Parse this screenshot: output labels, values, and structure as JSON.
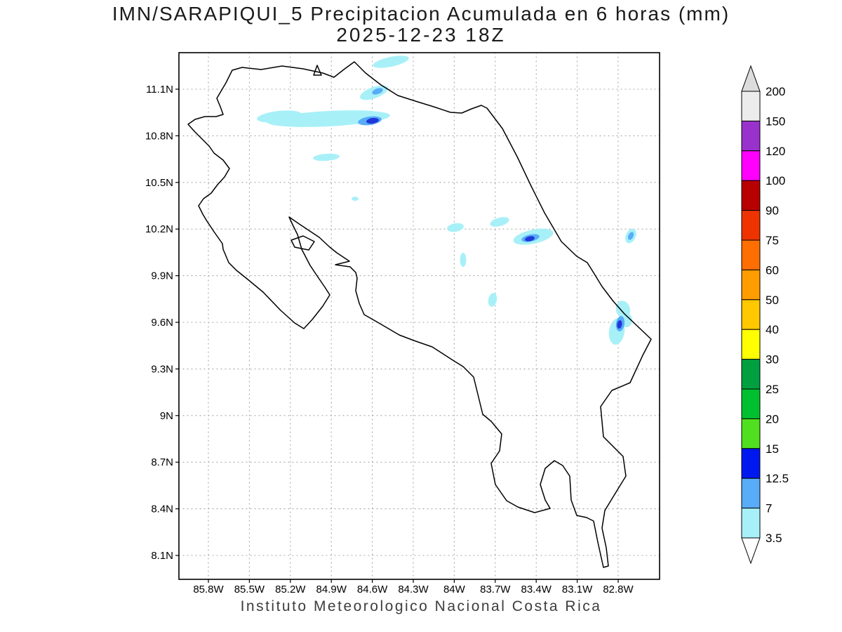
{
  "title": {
    "line1": "IMN/SARAPIQUI_5 Precipitacion Acumulada en 6 horas (mm)",
    "line2": "2025-12-23 18Z"
  },
  "footer": {
    "text": "Instituto Meteorologico Nacional Costa Rica"
  },
  "map": {
    "x_ticks": [
      "85.8W",
      "85.5W",
      "85.2W",
      "84.9W",
      "84.6W",
      "84.3W",
      "84W",
      "83.7W",
      "83.4W",
      "83.1W",
      "82.8W"
    ],
    "y_ticks": [
      "11.1N",
      "10.8N",
      "10.5N",
      "10.2N",
      "9.9N",
      "9.6N",
      "9.3N",
      "9N",
      "8.7N",
      "8.4N",
      "8.1N"
    ]
  },
  "palette": {
    "precip_light": "#a8f0f8",
    "precip_medium": "#58acf8",
    "precip_dark": "#2038d8",
    "grid": "#a0a0a0"
  },
  "colorbar": {
    "levels": [
      "200",
      "150",
      "120",
      "100",
      "90",
      "75",
      "60",
      "50",
      "40",
      "30",
      "25",
      "20",
      "15",
      "12.5",
      "7",
      "3.5"
    ],
    "segment_colors": [
      "#ececec",
      "#9932cc",
      "#ff00ff",
      "#b80000",
      "#ee3300",
      "#ff6e00",
      "#ff9c00",
      "#ffc800",
      "#ffff00",
      "#00a040",
      "#00c030",
      "#50e020",
      "#0018f0",
      "#58acf8",
      "#a8f0f8"
    ],
    "above_color": "#dcdcdc",
    "below_color": "#ffffff"
  },
  "chart_data": {
    "type": "map",
    "title": "IMN/SARAPIQUI_5 Precipitacion Acumulada en 6 horas (mm)",
    "valid_time": "2025-12-23 18Z",
    "region": "Costa Rica",
    "lon_ticks_W": [
      85.8,
      85.5,
      85.2,
      84.9,
      84.6,
      84.3,
      84.0,
      83.7,
      83.4,
      83.1,
      82.8
    ],
    "lat_ticks_N": [
      11.1,
      10.8,
      10.5,
      10.2,
      9.9,
      9.6,
      9.3,
      9.0,
      8.7,
      8.4,
      8.1
    ],
    "contour_levels_mm": [
      3.5,
      7,
      12.5,
      15,
      20,
      25,
      30,
      40,
      50,
      60,
      75,
      90,
      100,
      120,
      150,
      200
    ],
    "precip_cells": [
      {
        "lon_W": 84.46,
        "lat_N": 11.28,
        "peak_mm": 7
      },
      {
        "lon_W": 84.59,
        "lat_N": 11.08,
        "peak_mm": 12.5
      },
      {
        "lon_W": 84.9,
        "lat_N": 10.92,
        "peak_mm": 7
      },
      {
        "lon_W": 84.59,
        "lat_N": 10.9,
        "peak_mm": 15
      },
      {
        "lon_W": 84.94,
        "lat_N": 10.66,
        "peak_mm": 3.5
      },
      {
        "lon_W": 84.73,
        "lat_N": 10.39,
        "peak_mm": 3.5
      },
      {
        "lon_W": 83.99,
        "lat_N": 10.21,
        "peak_mm": 3.5
      },
      {
        "lon_W": 83.67,
        "lat_N": 10.25,
        "peak_mm": 3.5
      },
      {
        "lon_W": 83.43,
        "lat_N": 10.15,
        "peak_mm": 15
      },
      {
        "lon_W": 82.71,
        "lat_N": 10.16,
        "peak_mm": 7
      },
      {
        "lon_W": 83.94,
        "lat_N": 10.0,
        "peak_mm": 3.5
      },
      {
        "lon_W": 83.72,
        "lat_N": 9.74,
        "peak_mm": 3.5
      },
      {
        "lon_W": 82.79,
        "lat_N": 9.6,
        "peak_mm": 15
      }
    ]
  }
}
